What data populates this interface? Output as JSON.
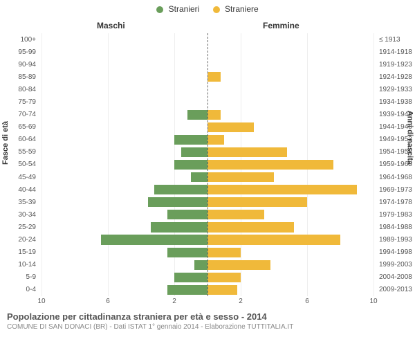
{
  "legend": {
    "male": {
      "label": "Stranieri",
      "color": "#6a9e5b"
    },
    "female": {
      "label": "Straniere",
      "color": "#f0b93a"
    }
  },
  "headers": {
    "left": "Maschi",
    "right": "Femmine"
  },
  "axis_titles": {
    "left": "Fasce di età",
    "right": "Anni di nascita"
  },
  "x_axis": {
    "max": 10,
    "ticks": [
      10,
      6,
      2,
      2,
      6,
      10
    ]
  },
  "colors": {
    "male_bar": "#6a9e5b",
    "female_bar": "#f0b93a",
    "grid": "#eeeeee",
    "centerline": "#666666",
    "background": "#ffffff"
  },
  "rows": [
    {
      "age": "100+",
      "birth": "≤ 1913",
      "m": 0,
      "f": 0
    },
    {
      "age": "95-99",
      "birth": "1914-1918",
      "m": 0,
      "f": 0
    },
    {
      "age": "90-94",
      "birth": "1919-1923",
      "m": 0,
      "f": 0
    },
    {
      "age": "85-89",
      "birth": "1924-1928",
      "m": 0,
      "f": 0.8
    },
    {
      "age": "80-84",
      "birth": "1929-1933",
      "m": 0,
      "f": 0
    },
    {
      "age": "75-79",
      "birth": "1934-1938",
      "m": 0,
      "f": 0
    },
    {
      "age": "70-74",
      "birth": "1939-1943",
      "m": 1.2,
      "f": 0.8
    },
    {
      "age": "65-69",
      "birth": "1944-1948",
      "m": 0,
      "f": 2.8
    },
    {
      "age": "60-64",
      "birth": "1949-1953",
      "m": 2.0,
      "f": 1.0
    },
    {
      "age": "55-59",
      "birth": "1954-1958",
      "m": 1.6,
      "f": 4.8
    },
    {
      "age": "50-54",
      "birth": "1959-1963",
      "m": 2.0,
      "f": 7.6
    },
    {
      "age": "45-49",
      "birth": "1964-1968",
      "m": 1.0,
      "f": 4.0
    },
    {
      "age": "40-44",
      "birth": "1969-1973",
      "m": 3.2,
      "f": 9.0
    },
    {
      "age": "35-39",
      "birth": "1974-1978",
      "m": 3.6,
      "f": 6.0
    },
    {
      "age": "30-34",
      "birth": "1979-1983",
      "m": 2.4,
      "f": 3.4
    },
    {
      "age": "25-29",
      "birth": "1984-1988",
      "m": 3.4,
      "f": 5.2
    },
    {
      "age": "20-24",
      "birth": "1989-1993",
      "m": 6.4,
      "f": 8.0
    },
    {
      "age": "15-19",
      "birth": "1994-1998",
      "m": 2.4,
      "f": 2.0
    },
    {
      "age": "10-14",
      "birth": "1999-2003",
      "m": 0.8,
      "f": 3.8
    },
    {
      "age": "5-9",
      "birth": "2004-2008",
      "m": 2.0,
      "f": 2.0
    },
    {
      "age": "0-4",
      "birth": "2009-2013",
      "m": 2.4,
      "f": 1.8
    }
  ],
  "caption": {
    "title": "Popolazione per cittadinanza straniera per età e sesso - 2014",
    "sub": "COMUNE DI SAN DONACI (BR) - Dati ISTAT 1° gennaio 2014 - Elaborazione TUTTITALIA.IT"
  }
}
